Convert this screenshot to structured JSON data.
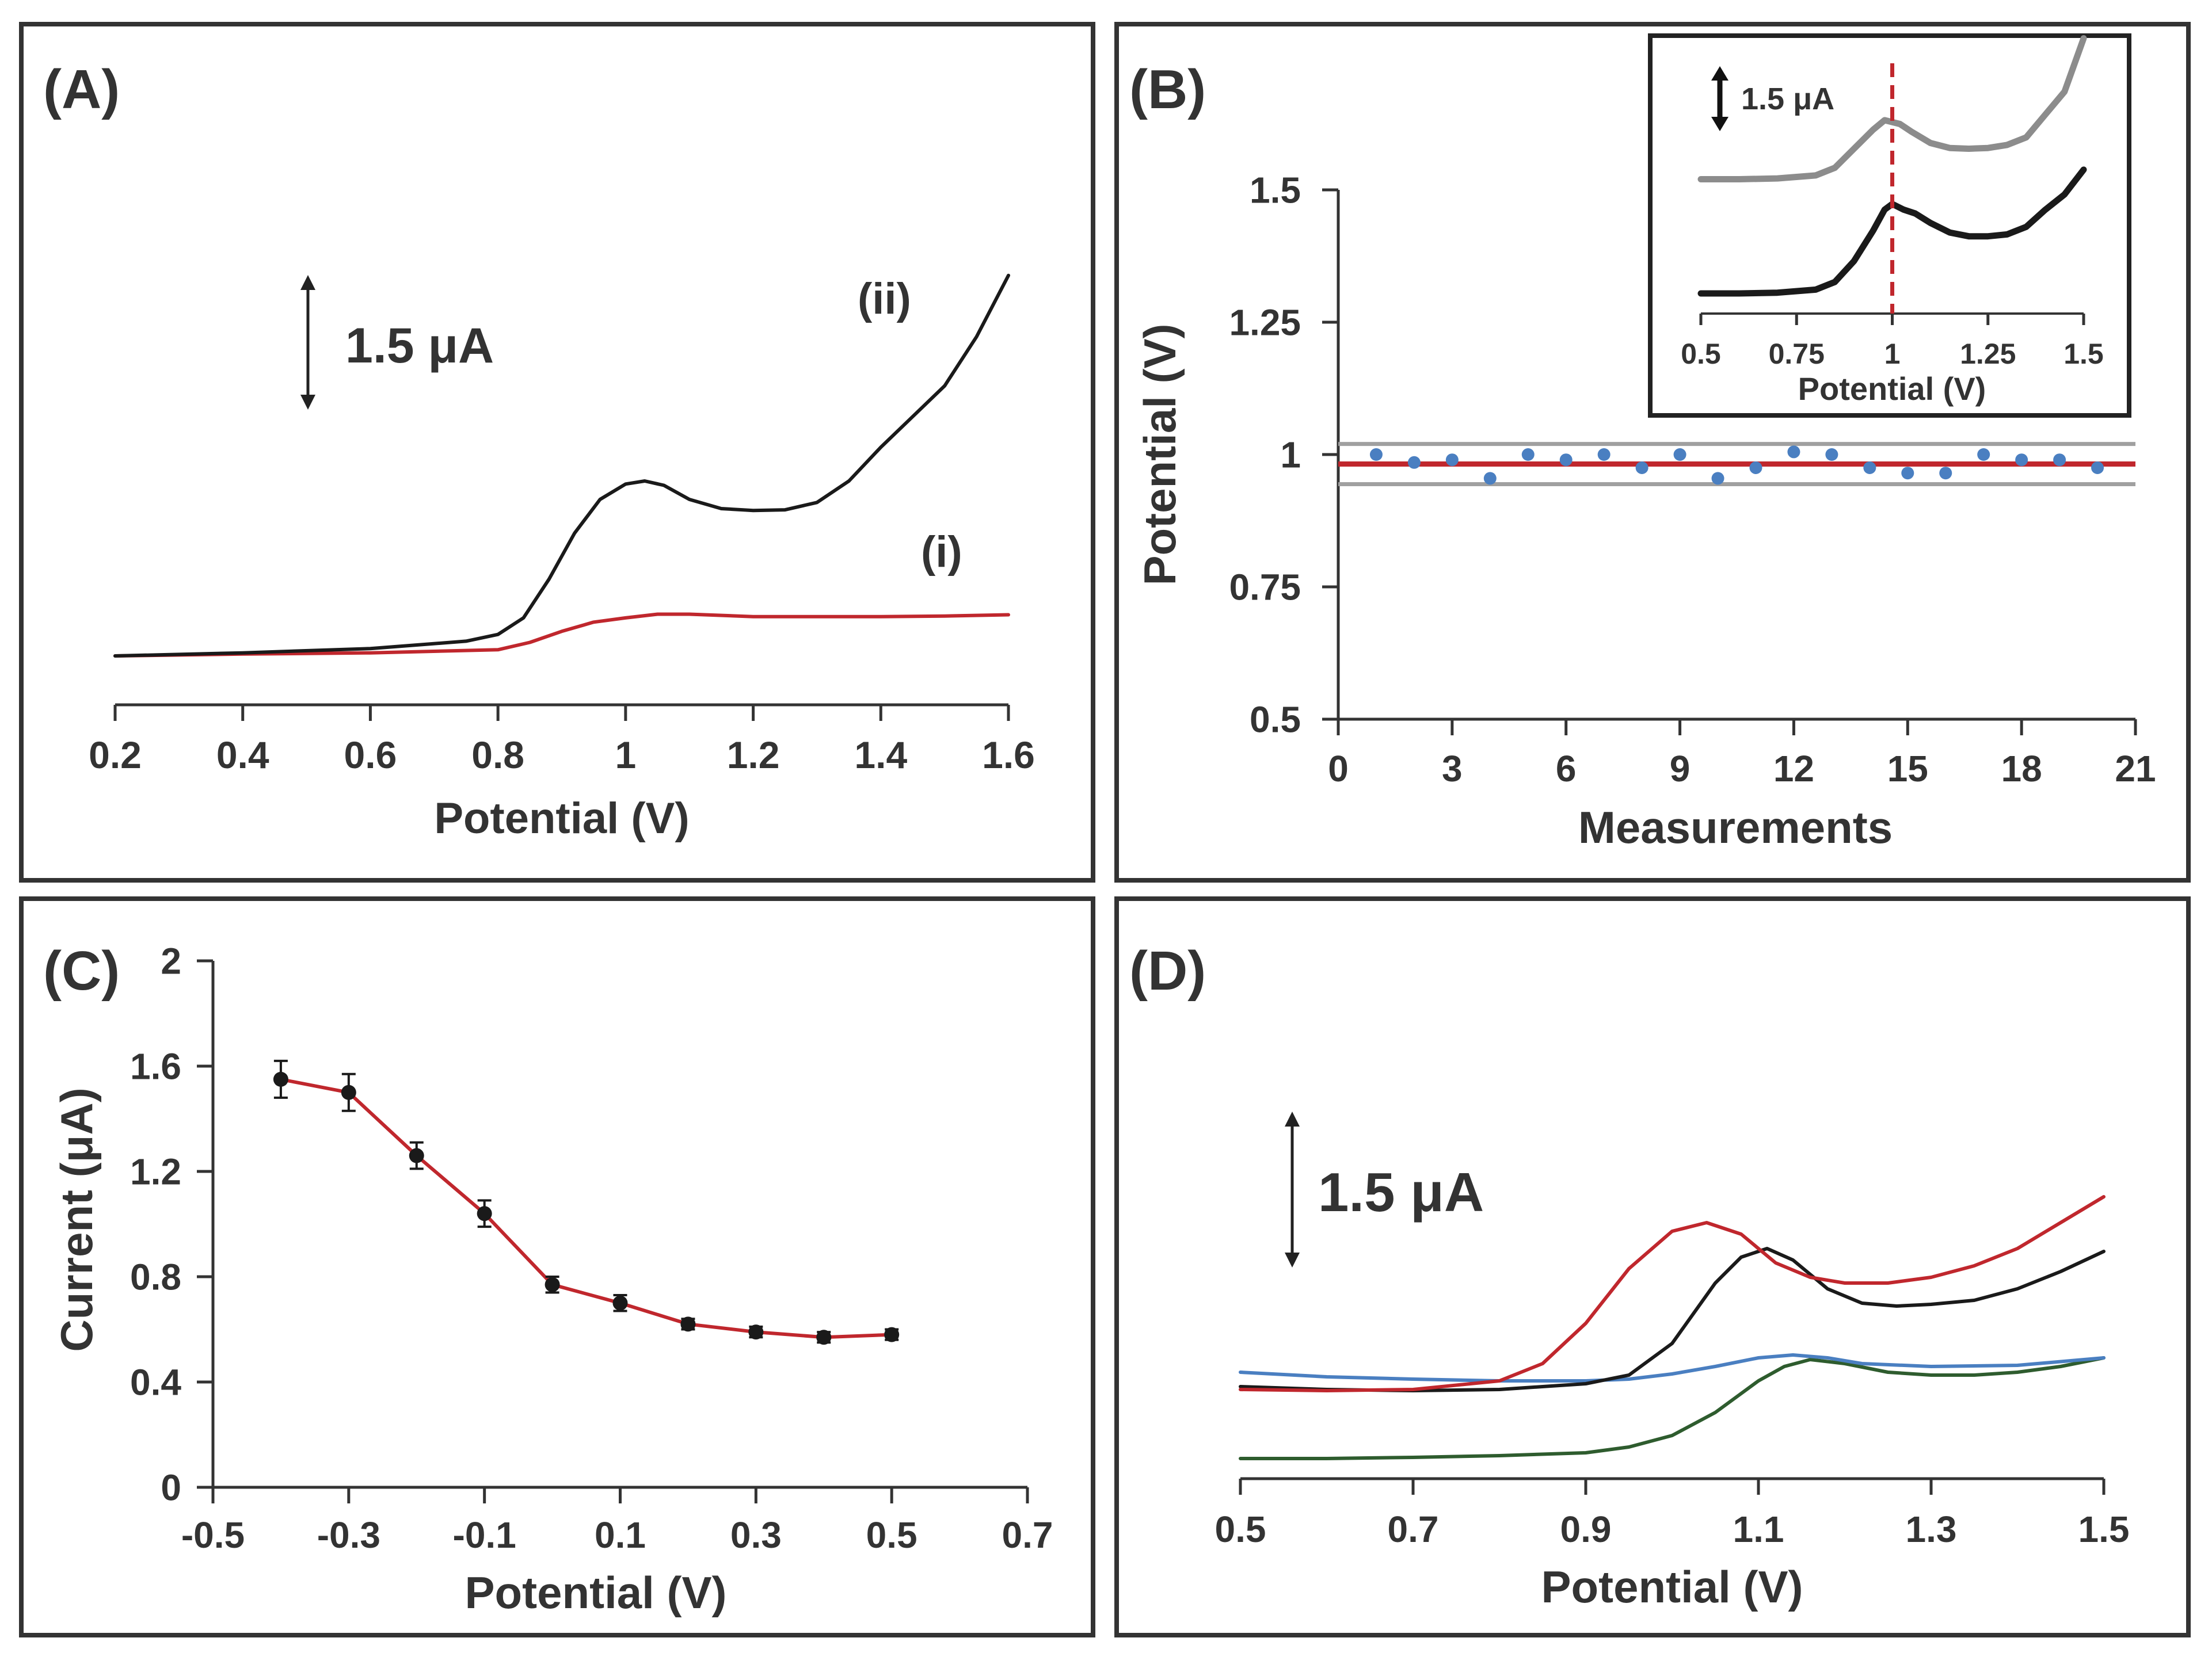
{
  "figure": {
    "panels": [
      {
        "letter": "(A)"
      },
      {
        "letter": "(B)"
      },
      {
        "letter": "(C)"
      },
      {
        "letter": "(D)"
      }
    ]
  },
  "chart_data": [
    {
      "panel": "A",
      "type": "line",
      "title": "",
      "xlabel": "Potential (V)",
      "ylabel": "",
      "xlim": [
        0.2,
        1.6
      ],
      "xticks": [
        0.2,
        0.4,
        0.6,
        0.8,
        1,
        1.2,
        1.4,
        1.6
      ],
      "xtick_labels": [
        "0.2",
        "0.4",
        "0.6",
        "0.8",
        "1",
        "1.2",
        "1.4",
        "1.6"
      ],
      "ylim": [
        0,
        7.5
      ],
      "scale_bar": {
        "label": "1.5 μA",
        "value": 1.5
      },
      "annotations": [
        "(ii)",
        "(i)"
      ],
      "series": [
        {
          "name": "(ii)",
          "color": "#1a1a1a",
          "x": [
            0.2,
            0.4,
            0.6,
            0.75,
            0.8,
            0.84,
            0.88,
            0.92,
            0.96,
            1.0,
            1.03,
            1.06,
            1.1,
            1.15,
            1.2,
            1.25,
            1.3,
            1.35,
            1.4,
            1.45,
            1.5,
            1.55,
            1.6
          ],
          "y": [
            0.0,
            0.05,
            0.12,
            0.24,
            0.35,
            0.62,
            1.25,
            2.0,
            2.55,
            2.8,
            2.85,
            2.78,
            2.55,
            2.4,
            2.37,
            2.38,
            2.5,
            2.85,
            3.4,
            3.9,
            4.4,
            5.2,
            6.2
          ]
        },
        {
          "name": "(i)",
          "color": "#c0272d",
          "x": [
            0.2,
            0.4,
            0.6,
            0.8,
            0.85,
            0.9,
            0.95,
            1.0,
            1.05,
            1.1,
            1.2,
            1.3,
            1.4,
            1.5,
            1.6
          ],
          "y": [
            0.0,
            0.03,
            0.05,
            0.1,
            0.22,
            0.4,
            0.55,
            0.62,
            0.68,
            0.68,
            0.64,
            0.64,
            0.64,
            0.65,
            0.67
          ]
        }
      ]
    },
    {
      "panel": "B",
      "type": "scatter",
      "title": "",
      "xlabel": "Measurements",
      "ylabel": "Potential (V)",
      "xlim": [
        0,
        21
      ],
      "ylim": [
        0.5,
        1.5
      ],
      "xticks": [
        0,
        3,
        6,
        9,
        12,
        15,
        18,
        21
      ],
      "xtick_labels": [
        "0",
        "3",
        "6",
        "9",
        "12",
        "15",
        "18",
        "21"
      ],
      "yticks": [
        0.5,
        0.75,
        1,
        1.25,
        1.5
      ],
      "ytick_labels": [
        "0.5",
        "0.75",
        "1",
        "1.25",
        "1.5"
      ],
      "x": [
        1,
        2,
        3,
        4,
        5,
        6,
        7,
        8,
        9,
        10,
        11,
        12,
        13,
        14,
        15,
        16,
        17,
        18,
        19,
        20
      ],
      "y": [
        1.0,
        0.985,
        0.99,
        0.955,
        1.0,
        0.99,
        1.0,
        0.975,
        1.0,
        0.955,
        0.975,
        1.005,
        1.0,
        0.975,
        0.965,
        0.965,
        1.0,
        0.99,
        0.99,
        0.975
      ],
      "point_color": "#4a7fc1",
      "reference_lines": [
        {
          "name": "mean",
          "value": 0.982,
          "color": "#c0272d"
        },
        {
          "name": "upper limit",
          "value": 1.02,
          "color": "#a0a0a0"
        },
        {
          "name": "lower limit",
          "value": 0.944,
          "color": "#a0a0a0"
        }
      ],
      "inset": {
        "type": "line",
        "xlabel": "Potential (V)",
        "xlim": [
          0.5,
          1.5
        ],
        "xticks": [
          0.5,
          0.75,
          1,
          1.25,
          1.5
        ],
        "xtick_labels": [
          "0.5",
          "0.75",
          "1",
          "1.25",
          "1.5"
        ],
        "ylim": [
          0,
          6.8
        ],
        "scale_bar": {
          "label": "1.5 μA",
          "value": 1.5
        },
        "marker_line": {
          "x": 1.0,
          "color": "#c0272d"
        },
        "series": [
          {
            "name": "gray",
            "color": "#8c8c8c",
            "x": [
              0.5,
              0.6,
              0.7,
              0.8,
              0.85,
              0.9,
              0.95,
              0.98,
              1.02,
              1.05,
              1.1,
              1.15,
              1.2,
              1.25,
              1.3,
              1.35,
              1.4,
              1.45,
              1.5
            ],
            "y": [
              3.0,
              3.0,
              3.02,
              3.1,
              3.3,
              3.8,
              4.3,
              4.55,
              4.45,
              4.25,
              3.95,
              3.82,
              3.8,
              3.82,
              3.9,
              4.1,
              4.7,
              5.3,
              6.7
            ]
          },
          {
            "name": "black",
            "color": "#1a1a1a",
            "x": [
              0.5,
              0.6,
              0.7,
              0.8,
              0.85,
              0.9,
              0.95,
              0.98,
              1.0,
              1.03,
              1.06,
              1.1,
              1.15,
              1.2,
              1.25,
              1.3,
              1.35,
              1.4,
              1.45,
              1.5
            ],
            "y": [
              0.0,
              0.0,
              0.02,
              0.1,
              0.3,
              0.85,
              1.65,
              2.2,
              2.35,
              2.2,
              2.1,
              1.85,
              1.6,
              1.5,
              1.5,
              1.55,
              1.75,
              2.2,
              2.6,
              3.25
            ]
          }
        ]
      }
    },
    {
      "panel": "C",
      "type": "line",
      "title": "",
      "xlabel": "Potential (V)",
      "ylabel": "Current (μA)",
      "xlim": [
        -0.5,
        0.7
      ],
      "ylim": [
        0,
        2
      ],
      "xticks": [
        -0.5,
        -0.3,
        -0.1,
        0.1,
        0.3,
        0.5,
        0.7
      ],
      "xtick_labels": [
        "-0.5",
        "-0.3",
        "-0.1",
        "0.1",
        "0.3",
        "0.5",
        "0.7"
      ],
      "yticks": [
        0,
        0.4,
        0.8,
        1.2,
        1.6,
        2
      ],
      "ytick_labels": [
        "0",
        "0.4",
        "0.8",
        "1.2",
        "1.6",
        "2"
      ],
      "x": [
        -0.4,
        -0.3,
        -0.2,
        -0.1,
        0.0,
        0.1,
        0.2,
        0.3,
        0.4,
        0.5
      ],
      "y": [
        1.55,
        1.5,
        1.26,
        1.04,
        0.77,
        0.7,
        0.62,
        0.59,
        0.57,
        0.58
      ],
      "error": [
        0.07,
        0.07,
        0.05,
        0.05,
        0.03,
        0.03,
        0.02,
        0.02,
        0.02,
        0.02
      ],
      "line_color": "#c0272d",
      "marker_color": "#1a1a1a"
    },
    {
      "panel": "D",
      "type": "line",
      "title": "",
      "xlabel": "Potential (V)",
      "ylabel": "",
      "xlim": [
        0.5,
        1.5
      ],
      "xticks": [
        0.5,
        0.7,
        0.9,
        1.1,
        1.3,
        1.5
      ],
      "xtick_labels": [
        "0.5",
        "0.7",
        "0.9",
        "1.1",
        "1.3",
        "1.5"
      ],
      "ylim": [
        0,
        6.4
      ],
      "scale_bar": {
        "label": "1.5 μA",
        "value": 1.5
      },
      "series": [
        {
          "name": "red",
          "color": "#c0272d",
          "x": [
            0.5,
            0.6,
            0.7,
            0.8,
            0.85,
            0.9,
            0.95,
            1.0,
            1.04,
            1.08,
            1.12,
            1.16,
            1.2,
            1.25,
            1.3,
            1.35,
            1.4,
            1.45,
            1.5
          ],
          "y": [
            1.2,
            1.18,
            1.2,
            1.35,
            1.65,
            2.35,
            3.3,
            3.95,
            4.1,
            3.9,
            3.4,
            3.15,
            3.05,
            3.05,
            3.15,
            3.35,
            3.65,
            4.1,
            4.55
          ]
        },
        {
          "name": "black",
          "color": "#1a1a1a",
          "x": [
            0.5,
            0.6,
            0.7,
            0.8,
            0.9,
            0.95,
            1.0,
            1.05,
            1.08,
            1.11,
            1.14,
            1.18,
            1.22,
            1.26,
            1.3,
            1.35,
            1.4,
            1.45,
            1.5
          ],
          "y": [
            1.25,
            1.2,
            1.18,
            1.2,
            1.3,
            1.45,
            2.0,
            3.05,
            3.5,
            3.65,
            3.45,
            2.95,
            2.7,
            2.65,
            2.68,
            2.75,
            2.95,
            3.25,
            3.6
          ]
        },
        {
          "name": "blue",
          "color": "#4a7fc1",
          "x": [
            0.5,
            0.6,
            0.7,
            0.8,
            0.9,
            0.95,
            1.0,
            1.05,
            1.1,
            1.14,
            1.18,
            1.22,
            1.3,
            1.4,
            1.5
          ],
          "y": [
            1.5,
            1.42,
            1.38,
            1.35,
            1.35,
            1.38,
            1.47,
            1.6,
            1.75,
            1.8,
            1.75,
            1.65,
            1.6,
            1.62,
            1.75
          ]
        },
        {
          "name": "green",
          "color": "#2e5c2e",
          "x": [
            0.5,
            0.6,
            0.7,
            0.8,
            0.9,
            0.95,
            1.0,
            1.05,
            1.1,
            1.13,
            1.16,
            1.2,
            1.25,
            1.3,
            1.35,
            1.4,
            1.45,
            1.5
          ],
          "y": [
            0.0,
            0.0,
            0.02,
            0.05,
            0.1,
            0.2,
            0.4,
            0.8,
            1.35,
            1.6,
            1.72,
            1.65,
            1.5,
            1.45,
            1.45,
            1.5,
            1.6,
            1.75
          ]
        }
      ]
    }
  ]
}
